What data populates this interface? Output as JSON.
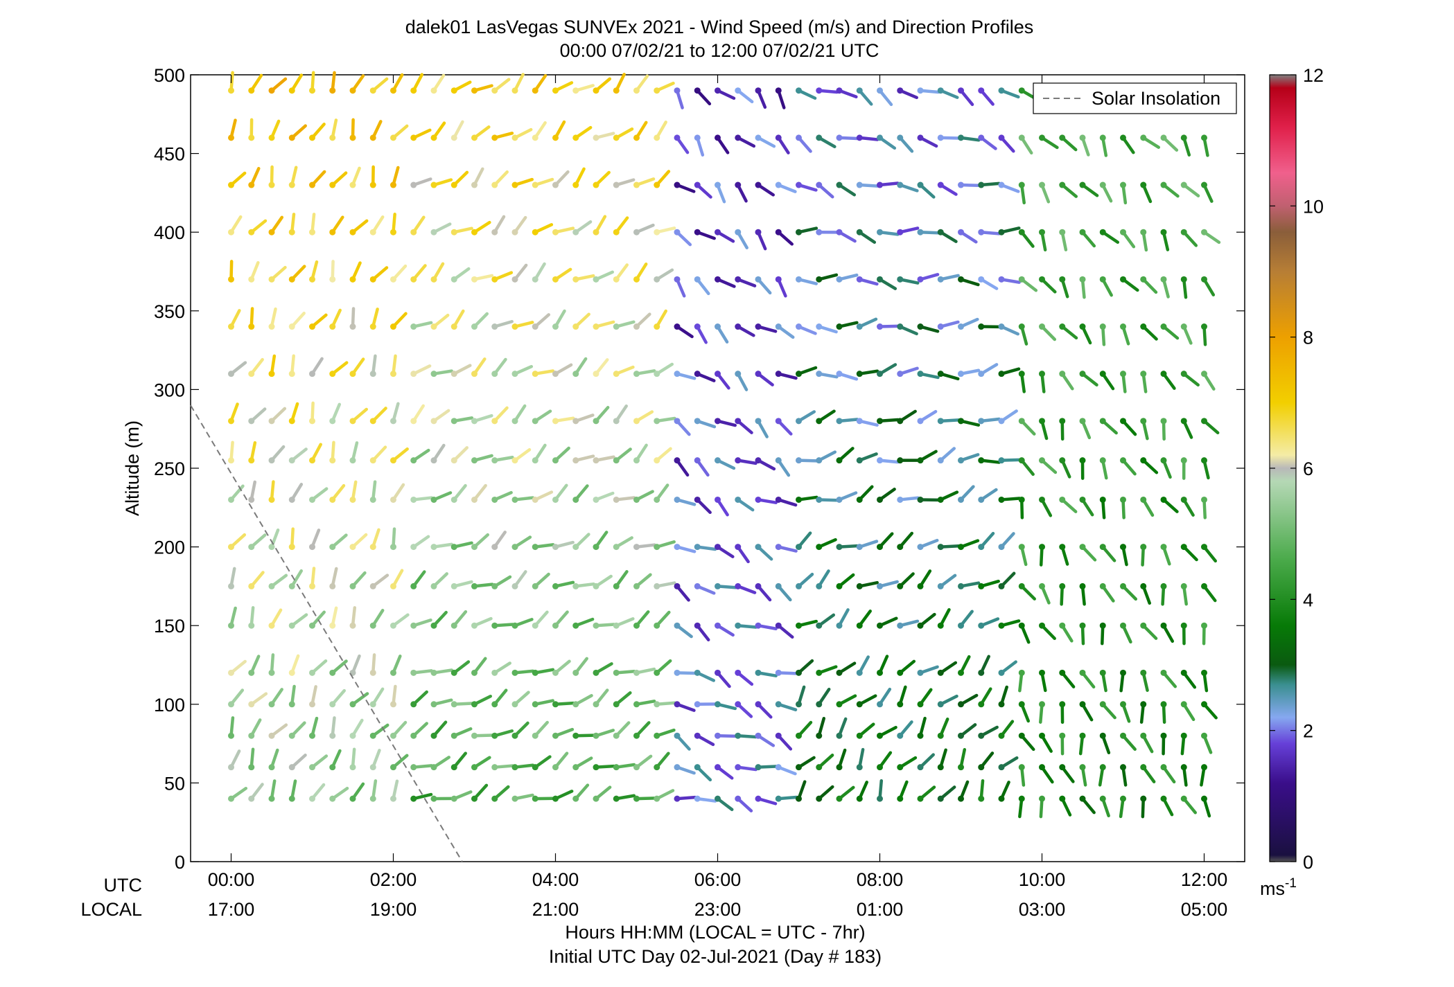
{
  "chart_data": {
    "type": "scatter",
    "marker": "wind-vector",
    "title": "dalek01 LasVegas SUNVEx 2021 - Wind Speed (m/s) and Direction Profiles",
    "subtitle": "00:00 07/02/21 to 12:00 07/02/21  UTC",
    "ylabel": "Altitude (m)",
    "xlabel": "Hours HH:MM  (LOCAL = UTC - 7hr)",
    "xlabel2": "Initial UTC Day 02-Jul-2021 (Day # 183)",
    "xlim_hours_utc": [
      -0.5,
      12.5
    ],
    "ylim": [
      0,
      500
    ],
    "utc_row_label": "UTC",
    "local_row_label": "LOCAL",
    "x_ticks": [
      {
        "hour": 0,
        "utc": "00:00",
        "local": "17:00"
      },
      {
        "hour": 2,
        "utc": "02:00",
        "local": "19:00"
      },
      {
        "hour": 4,
        "utc": "04:00",
        "local": "21:00"
      },
      {
        "hour": 6,
        "utc": "06:00",
        "local": "23:00"
      },
      {
        "hour": 8,
        "utc": "08:00",
        "local": "01:00"
      },
      {
        "hour": 10,
        "utc": "10:00",
        "local": "03:00"
      },
      {
        "hour": 12,
        "utc": "12:00",
        "local": "05:00"
      }
    ],
    "y_ticks": [
      {
        "value": 0,
        "label": "0"
      },
      {
        "value": 50,
        "label": "50"
      },
      {
        "value": 100,
        "label": "100"
      },
      {
        "value": 150,
        "label": "150"
      },
      {
        "value": 200,
        "label": "200"
      },
      {
        "value": 250,
        "label": "250"
      },
      {
        "value": 300,
        "label": "300"
      },
      {
        "value": 350,
        "label": "350"
      },
      {
        "value": 400,
        "label": "400"
      },
      {
        "value": 450,
        "label": "450"
      },
      {
        "value": 500,
        "label": "500"
      }
    ],
    "legend": {
      "position": "top-right",
      "label": "Solar Insolation"
    },
    "solar_insolation": {
      "x_hours": [
        -0.5,
        2.85
      ],
      "y_altitude": [
        290,
        0
      ],
      "color": "#7a7a7a",
      "style": "dashed"
    },
    "colorbar": {
      "min": 0,
      "max": 12,
      "ticks": [
        {
          "value": 0,
          "label": "0"
        },
        {
          "value": 2,
          "label": "2"
        },
        {
          "value": 4,
          "label": "4"
        },
        {
          "value": 6,
          "label": "6"
        },
        {
          "value": 8,
          "label": "8"
        },
        {
          "value": 10,
          "label": "10"
        },
        {
          "value": 12,
          "label": "12"
        }
      ],
      "unit_label": "ms",
      "unit_exp": "-1",
      "stops": [
        {
          "v": 0,
          "color": "#555555"
        },
        {
          "v": 0.1,
          "color": "#1a1040"
        },
        {
          "v": 1.2,
          "color": "#3a0e8a"
        },
        {
          "v": 1.8,
          "color": "#6640d8"
        },
        {
          "v": 2.2,
          "color": "#86a8f0"
        },
        {
          "v": 2.7,
          "color": "#3a8f90"
        },
        {
          "v": 3.0,
          "color": "#0a5a10"
        },
        {
          "v": 3.6,
          "color": "#077a07"
        },
        {
          "v": 4.6,
          "color": "#4aaa4a"
        },
        {
          "v": 5.8,
          "color": "#b5d8b5"
        },
        {
          "v": 6.0,
          "color": "#b8b8b8"
        },
        {
          "v": 6.2,
          "color": "#f4eca6"
        },
        {
          "v": 7.0,
          "color": "#f2cf00"
        },
        {
          "v": 8.0,
          "color": "#eda000"
        },
        {
          "v": 9.0,
          "color": "#b77e35"
        },
        {
          "v": 9.6,
          "color": "#8a5e3a"
        },
        {
          "v": 10.0,
          "color": "#c06070"
        },
        {
          "v": 10.5,
          "color": "#f0608c"
        },
        {
          "v": 11.2,
          "color": "#e0204a"
        },
        {
          "v": 11.8,
          "color": "#b50018"
        },
        {
          "v": 12.0,
          "color": "#808080"
        }
      ]
    },
    "altitudes_m": [
      40,
      60,
      80,
      100,
      120,
      150,
      175,
      200,
      230,
      255,
      280,
      310,
      340,
      370,
      400,
      430,
      460,
      490
    ],
    "direction_convention": "degrees clockwise from north, direction the wind blows toward; speed in m/s",
    "time_segments": [
      {
        "t_start": 0.0,
        "t_end": 2.0,
        "step_hours": 0.25,
        "speed_low_alt": 5.3,
        "speed_high_alt": 7.3,
        "dir_low_alt": 30,
        "dir_high_alt": 25
      },
      {
        "t_start": 2.25,
        "t_end": 5.25,
        "step_hours": 0.25,
        "speed_low_alt": 4.6,
        "speed_high_alt": 6.9,
        "dir_low_alt": 65,
        "dir_high_alt": 50
      },
      {
        "t_start": 5.5,
        "t_end": 6.75,
        "step_hours": 0.25,
        "speed_low_alt": 2.2,
        "speed_high_alt": 1.6,
        "dir_low_alt": 110,
        "dir_high_alt": 140
      },
      {
        "t_start": 7.0,
        "t_end": 9.5,
        "step_hours": 0.25,
        "speed_low_alt": 3.4,
        "speed_high_alt": 2.1,
        "dir_low_alt": 30,
        "dir_high_alt": 120
      },
      {
        "t_start": 9.75,
        "t_end": 12.0,
        "step_hours": 0.25,
        "speed_low_alt": 3.8,
        "speed_high_alt": 4.6,
        "dir_low_alt": 165,
        "dir_high_alt": 145
      }
    ]
  }
}
